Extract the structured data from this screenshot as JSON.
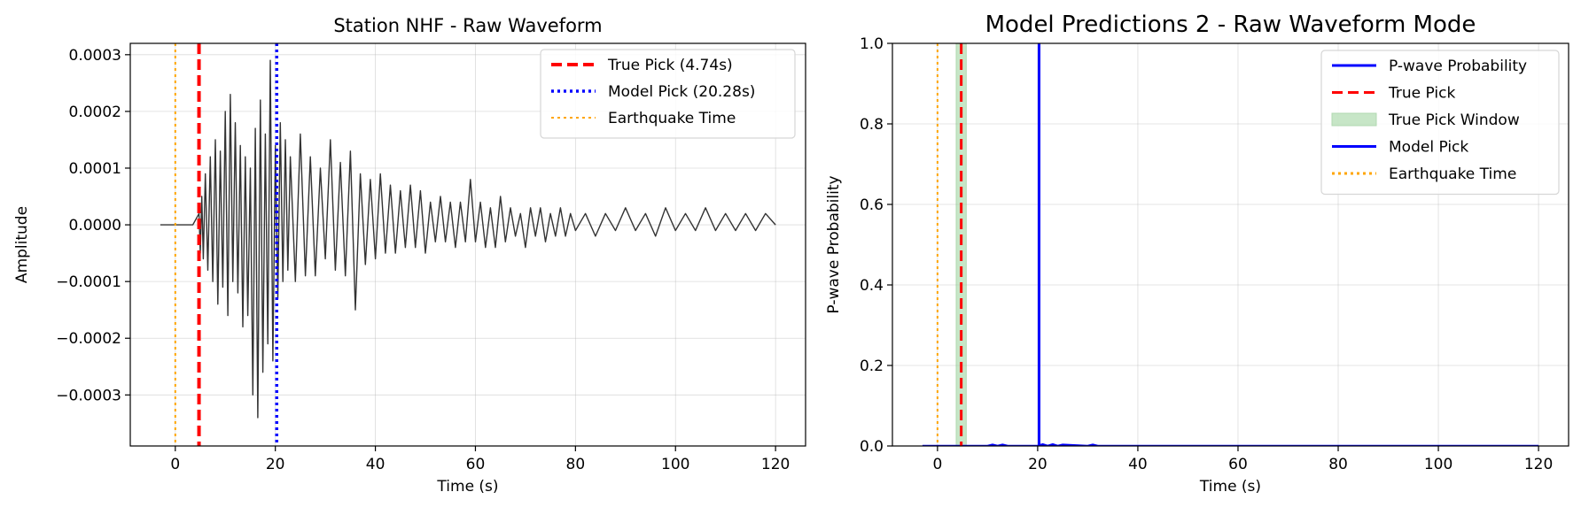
{
  "chart_data": [
    {
      "type": "line",
      "title": "Station NHF - Raw Waveform",
      "xlabel": "Time (s)",
      "ylabel": "Amplitude",
      "xlim": [
        -9,
        126
      ],
      "ylim": [
        -0.00039,
        0.00032
      ],
      "xticks": [
        0,
        20,
        40,
        60,
        80,
        100,
        120
      ],
      "xtick_labels": [
        "0",
        "20",
        "40",
        "60",
        "80",
        "100",
        "120"
      ],
      "yticks": [
        0.0003,
        0.0002,
        0.0001,
        0.0,
        -0.0001,
        -0.0002,
        -0.0003
      ],
      "ytick_labels": [
        "0.0003",
        "0.0002",
        "0.0001",
        "0.0000",
        "−0.0001",
        "−0.0002",
        "−0.0003"
      ],
      "grid": true,
      "legend_position": "top-right",
      "series": [
        {
          "name": "",
          "color": "#333333",
          "style": "solid",
          "x": [
            -3,
            3.5,
            4.74,
            5.0,
            5.3,
            5.6,
            6.0,
            6.5,
            7.0,
            7.5,
            8.0,
            8.5,
            9.0,
            9.5,
            10.0,
            10.5,
            11.0,
            11.5,
            12.0,
            12.5,
            13.0,
            13.5,
            14.0,
            14.5,
            15.0,
            15.5,
            16.0,
            16.5,
            17.0,
            17.5,
            18.0,
            18.5,
            19.0,
            19.5,
            20.0,
            20.5,
            21.0,
            21.5,
            22.0,
            22.5,
            23.0,
            24.0,
            25.0,
            26.0,
            27.0,
            28.0,
            29.0,
            30.0,
            31.0,
            32.0,
            33.0,
            34.0,
            35.0,
            36.0,
            37.0,
            38.0,
            39.0,
            40.0,
            41.0,
            42.0,
            43.0,
            44.0,
            45.0,
            46.0,
            47.0,
            48.0,
            49.0,
            50.0,
            51.0,
            52.0,
            53.0,
            54.0,
            55.0,
            56.0,
            57.0,
            58.0,
            59.0,
            60.0,
            61.0,
            62.0,
            63.0,
            64.0,
            65.0,
            66.0,
            67.0,
            68.0,
            69.0,
            70.0,
            71.0,
            72.0,
            73.0,
            74.0,
            75.0,
            76.0,
            77.0,
            78.0,
            79.0,
            80.0,
            82.0,
            84.0,
            86.0,
            88.0,
            90.0,
            92.0,
            94.0,
            96.0,
            98.0,
            100.0,
            102.0,
            104.0,
            106.0,
            108.0,
            110.0,
            112.0,
            114.0,
            116.0,
            118.0,
            120.0
          ],
          "y": [
            0.0,
            0.0,
            2e-05,
            -5e-05,
            5e-05,
            -6e-05,
            9e-05,
            -8e-05,
            0.00012,
            -0.0001,
            0.00015,
            -0.00014,
            0.00013,
            -0.00011,
            0.0002,
            -0.00016,
            0.00023,
            -0.0001,
            0.00018,
            -0.00012,
            0.00014,
            -0.00018,
            0.00012,
            -0.00016,
            0.0001,
            -0.0003,
            0.00017,
            -0.00034,
            0.00022,
            -0.00026,
            0.00016,
            -0.00021,
            0.00029,
            -0.00024,
            0.00014,
            -0.00013,
            0.00018,
            -0.0001,
            0.00015,
            -8e-05,
            0.00012,
            -0.0001,
            0.00016,
            -9e-05,
            0.00012,
            -9e-05,
            0.0001,
            -6e-05,
            0.00015,
            -8e-05,
            0.00011,
            -9e-05,
            0.00013,
            -0.00015,
            9e-05,
            -7e-05,
            8e-05,
            -6e-05,
            9e-05,
            -5e-05,
            7e-05,
            -5e-05,
            6e-05,
            -4e-05,
            7e-05,
            -4e-05,
            6e-05,
            -5e-05,
            4e-05,
            -3e-05,
            5e-05,
            -3e-05,
            4e-05,
            -4e-05,
            4e-05,
            -3e-05,
            8e-05,
            -3e-05,
            4e-05,
            -4e-05,
            3e-05,
            -4e-05,
            5e-05,
            -3e-05,
            3e-05,
            -2e-05,
            2e-05,
            -4e-05,
            3e-05,
            -2e-05,
            3e-05,
            -3e-05,
            2e-05,
            -2e-05,
            3e-05,
            -2e-05,
            2e-05,
            -1e-05,
            2e-05,
            -2e-05,
            2e-05,
            -1e-05,
            3e-05,
            -1e-05,
            2e-05,
            -2e-05,
            3e-05,
            -1e-05,
            2e-05,
            -1e-05,
            3e-05,
            -1e-05,
            2e-05,
            -1e-05,
            2e-05,
            -1e-05,
            2e-05,
            0.0
          ]
        }
      ],
      "vlines": [
        {
          "name": "True Pick (4.74s)",
          "x": 4.74,
          "color": "#ff0000",
          "style": "dashed",
          "width": 4
        },
        {
          "name": "Model Pick (20.28s)",
          "x": 20.28,
          "color": "#0000ff",
          "style": "dotted",
          "width": 3.5
        },
        {
          "name": "Earthquake Time",
          "x": 0,
          "color": "#ffa500",
          "style": "dotted",
          "width": 2
        }
      ]
    },
    {
      "type": "line",
      "title": "Model Predictions 2 - Raw Waveform Mode",
      "xlabel": "Time (s)",
      "ylabel": "P-wave Probability",
      "xlim": [
        -9,
        126
      ],
      "ylim": [
        0.0,
        1.0
      ],
      "xticks": [
        0,
        20,
        40,
        60,
        80,
        100,
        120
      ],
      "xtick_labels": [
        "0",
        "20",
        "40",
        "60",
        "80",
        "100",
        "120"
      ],
      "yticks": [
        0.0,
        0.2,
        0.4,
        0.6,
        0.8,
        1.0
      ],
      "ytick_labels": [
        "0.0",
        "0.2",
        "0.4",
        "0.6",
        "0.8",
        "1.0"
      ],
      "grid": true,
      "legend_position": "top-right",
      "series": [
        {
          "name": "P-wave Probability",
          "color": "#0000ff",
          "style": "solid",
          "x": [
            -3,
            10,
            11,
            12,
            13,
            14,
            20,
            21,
            22,
            23,
            24,
            25,
            30,
            31,
            32,
            120
          ],
          "y": [
            0.0,
            0.0,
            0.003,
            0.0,
            0.003,
            0.0,
            0.0,
            0.004,
            0.0,
            0.004,
            0.0,
            0.003,
            0.0,
            0.003,
            0.0,
            0.0
          ]
        }
      ],
      "window": {
        "name": "True Pick Window",
        "x0": 3.74,
        "x1": 5.74,
        "color": "#a3d6a3"
      },
      "vlines": [
        {
          "name": "True Pick",
          "x": 4.74,
          "color": "#ff0000",
          "style": "dashed",
          "width": 3
        },
        {
          "name": "Model Pick",
          "x": 20.28,
          "color": "#0000ff",
          "style": "solid",
          "width": 3
        },
        {
          "name": "Earthquake Time",
          "x": 0,
          "color": "#ffa500",
          "style": "dotted",
          "width": 2
        }
      ],
      "legend": [
        {
          "label": "P-wave Probability",
          "kind": "line",
          "color": "#0000ff",
          "style": "solid"
        },
        {
          "label": "True Pick",
          "kind": "line",
          "color": "#ff0000",
          "style": "dashed"
        },
        {
          "label": "True Pick Window",
          "kind": "patch",
          "color": "#a3d6a3"
        },
        {
          "label": "Model Pick",
          "kind": "line",
          "color": "#0000ff",
          "style": "solid"
        },
        {
          "label": "Earthquake Time",
          "kind": "line",
          "color": "#ffa500",
          "style": "dotted"
        }
      ]
    }
  ]
}
